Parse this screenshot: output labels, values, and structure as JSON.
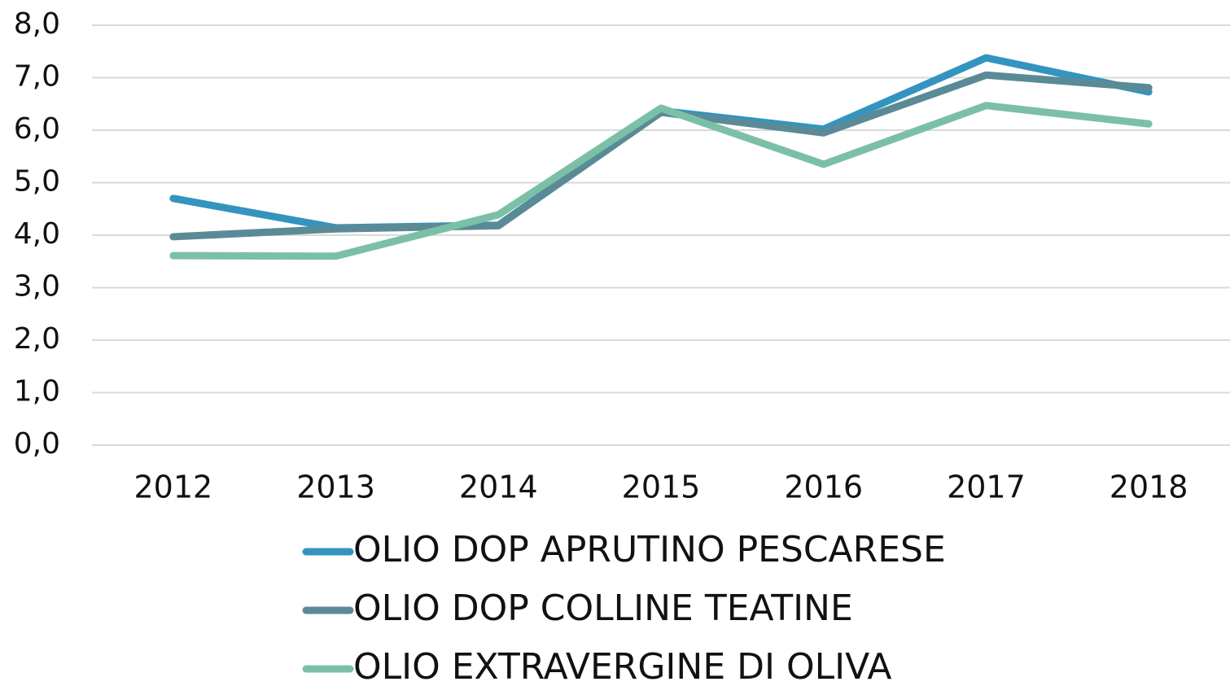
{
  "chart_data": {
    "type": "line",
    "categories": [
      "2012",
      "2013",
      "2014",
      "2015",
      "2016",
      "2017",
      "2018"
    ],
    "series": [
      {
        "name": "OLIO DOP APRUTINO PESCARESE",
        "color": "#3494bf",
        "values": [
          4.7,
          4.14,
          4.19,
          6.37,
          6.02,
          7.38,
          6.73
        ]
      },
      {
        "name": "OLIO DOP COLLINE TEATINE",
        "color": "#5b8a97",
        "values": [
          3.97,
          4.12,
          4.18,
          6.34,
          5.95,
          7.05,
          6.81
        ]
      },
      {
        "name": "OLIO EXTRAVERGINE DI OLIVA",
        "color": "#7bc0a6",
        "values": [
          3.61,
          3.6,
          4.39,
          6.42,
          5.35,
          6.47,
          6.12
        ]
      }
    ],
    "ylim": [
      0,
      8
    ],
    "yticks": [
      {
        "value": 0,
        "label": "0,0"
      },
      {
        "value": 1,
        "label": "1,0"
      },
      {
        "value": 2,
        "label": "2,0"
      },
      {
        "value": 3,
        "label": "3,0"
      },
      {
        "value": 4,
        "label": "4,0"
      },
      {
        "value": 5,
        "label": "5,0"
      },
      {
        "value": 6,
        "label": "6,0"
      },
      {
        "value": 7,
        "label": "7,0"
      },
      {
        "value": 8,
        "label": "8,0"
      }
    ],
    "grid": true,
    "legend": "bottom"
  }
}
